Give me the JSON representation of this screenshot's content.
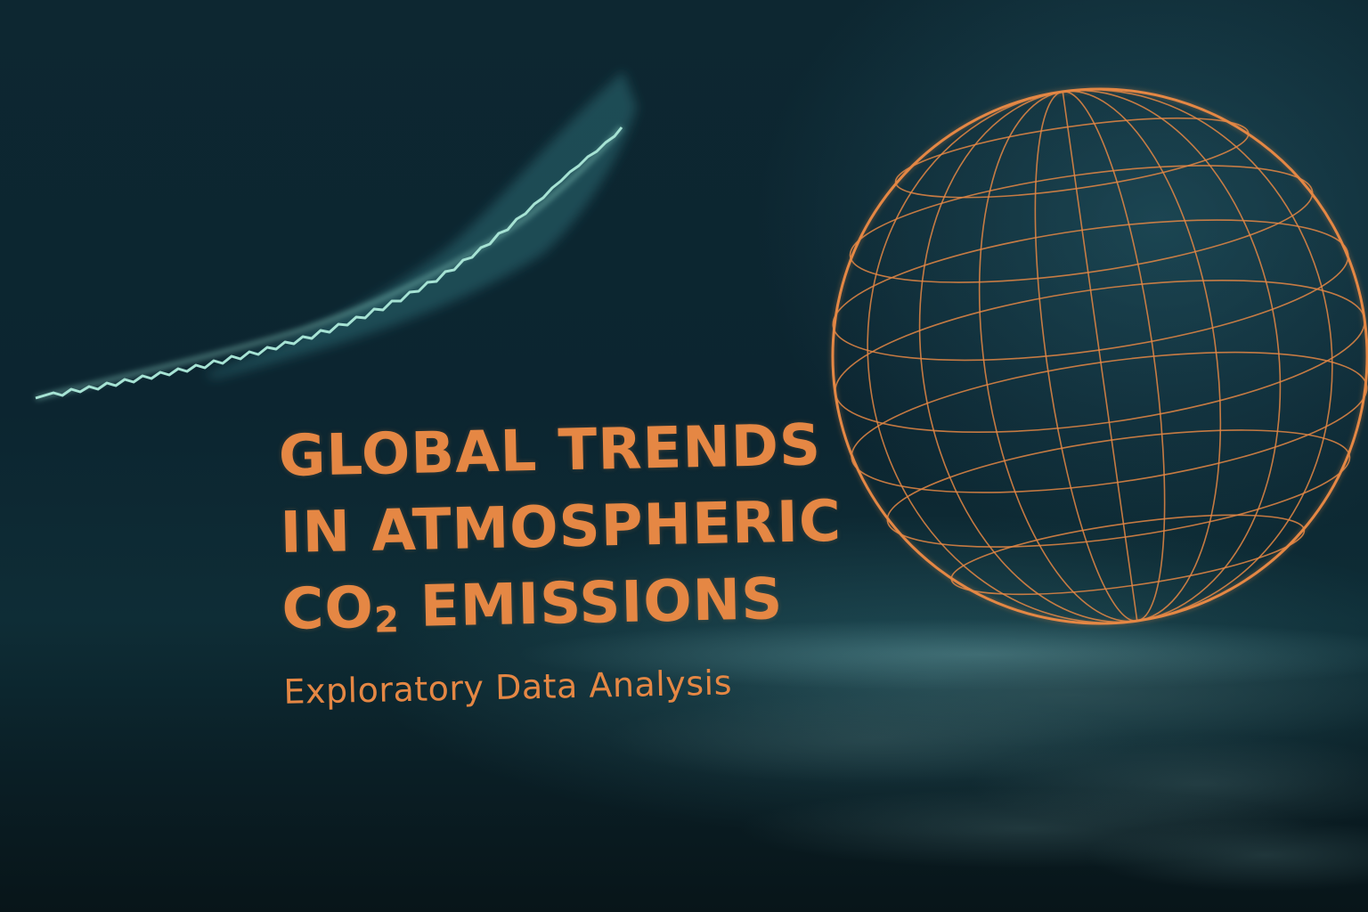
{
  "title": {
    "line1": "GLOBAL TRENDS",
    "line2": "IN ATMOSPHERIC",
    "line3_prefix": "CO",
    "line3_subscript": "2",
    "line3_suffix": " EMISSIONS"
  },
  "subtitle": "Exploratory Data Analysis",
  "colors": {
    "accent": "#e58744",
    "trend_line": "#8fd6c8",
    "background": "#0c2530"
  },
  "icons": {
    "globe": "wireframe-globe-icon",
    "trend": "rising-trend-line"
  }
}
